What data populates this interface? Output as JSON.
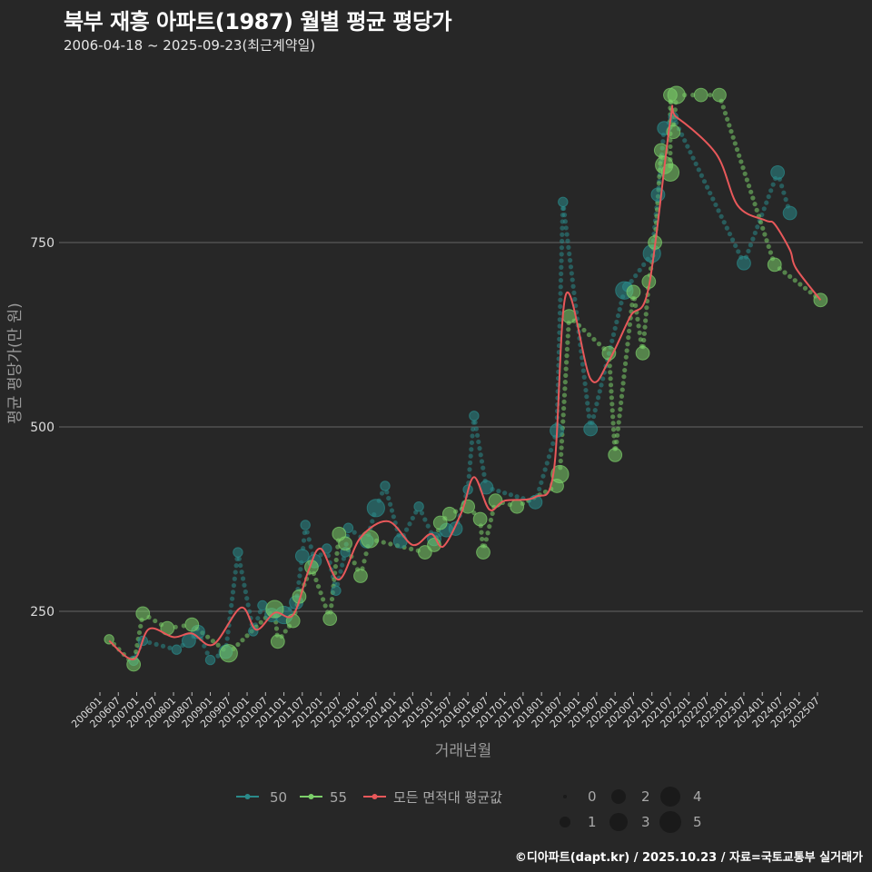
{
  "header": {
    "title": "북부 재흥 아파트(1987) 월별 평균 평당가",
    "subtitle": "2006-04-18 ~ 2025-09-23(최근계약일)"
  },
  "caption": "©디아파트(dapt.kr) / 2025.10.23 / 자료=국토교통부 실거래가",
  "colors": {
    "background": "#272727",
    "grid": "#5a5a5a",
    "series_50": "#2a8a8a",
    "series_55": "#7ccf6a",
    "average": "#e8585a"
  },
  "chart_data": {
    "type": "scatter+line",
    "title": "북부 재흥 아파트(1987) 월별 평균 평당가",
    "subtitle": "2006-04-18 ~ 2025-09-23(최근계약일)",
    "xlabel": "거래년월",
    "ylabel": "평균 평당가(만 원)",
    "ylim": [
      150,
      970
    ],
    "yticks": [
      250,
      500,
      750
    ],
    "grid": "horizontal",
    "x_tick_labels": [
      "200601",
      "200607",
      "200701",
      "200707",
      "200801",
      "200807",
      "200901",
      "200907",
      "201001",
      "201007",
      "201101",
      "201107",
      "201201",
      "201207",
      "201301",
      "201307",
      "201401",
      "201407",
      "201501",
      "201507",
      "201601",
      "201607",
      "201701",
      "201707",
      "201801",
      "201807",
      "201901",
      "201907",
      "202001",
      "202007",
      "202101",
      "202107",
      "202201",
      "202207",
      "202301",
      "202307",
      "202401",
      "202407",
      "202501",
      "202507"
    ],
    "legend": {
      "series": [
        "50",
        "55",
        "모든 면적대 평균값"
      ],
      "size_title": "",
      "size_values": [
        "0",
        "1",
        "2",
        "3",
        "4",
        "5"
      ],
      "position": "bottom"
    },
    "series": [
      {
        "name": "50",
        "color": "#2a8a8a",
        "points": [
          [
            "2006-12",
            183,
            1
          ],
          [
            "2007-03",
            210,
            1
          ],
          [
            "2008-02",
            198,
            1
          ],
          [
            "2008-06",
            210,
            2
          ],
          [
            "2008-09",
            222,
            2
          ],
          [
            "2009-01",
            184,
            1
          ],
          [
            "2009-06",
            195,
            2
          ],
          [
            "2009-10",
            330,
            1
          ],
          [
            "2010-03",
            223,
            1
          ],
          [
            "2010-06",
            258,
            1
          ],
          [
            "2010-09",
            245,
            2
          ],
          [
            "2011-01",
            245,
            3
          ],
          [
            "2011-05",
            262,
            2
          ],
          [
            "2011-07",
            325,
            2
          ],
          [
            "2011-08",
            367,
            1
          ],
          [
            "2011-11",
            318,
            2
          ],
          [
            "2012-03",
            335,
            1
          ],
          [
            "2012-06",
            278,
            1
          ],
          [
            "2012-09",
            330,
            1
          ],
          [
            "2012-10",
            363,
            1
          ],
          [
            "2013-04",
            345,
            2
          ],
          [
            "2013-07",
            390,
            3
          ],
          [
            "2013-10",
            420,
            1
          ],
          [
            "2014-03",
            345,
            2
          ],
          [
            "2014-09",
            392,
            1
          ],
          [
            "2015-02",
            348,
            2
          ],
          [
            "2015-06",
            360,
            2
          ],
          [
            "2015-09",
            362,
            2
          ],
          [
            "2016-01",
            415,
            1
          ],
          [
            "2016-03",
            515,
            1
          ],
          [
            "2016-07",
            418,
            2
          ],
          [
            "2017-11",
            398,
            2
          ],
          [
            "2018-06",
            495,
            2
          ],
          [
            "2018-08",
            805,
            1
          ],
          [
            "2019-05",
            497,
            2
          ],
          [
            "2020-04",
            685,
            3
          ],
          [
            "2020-05",
            690,
            1
          ],
          [
            "2021-01",
            735,
            3
          ],
          [
            "2021-03",
            815,
            2
          ],
          [
            "2021-05",
            905,
            2
          ],
          [
            "2021-08",
            920,
            1
          ],
          [
            "2023-07",
            722,
            2
          ],
          [
            "2024-06",
            845,
            2
          ],
          [
            "2024-10",
            790,
            2
          ]
        ]
      },
      {
        "name": "55",
        "color": "#7ccf6a",
        "points": [
          [
            "2006-04",
            212,
            1
          ],
          [
            "2006-12",
            178,
            2
          ],
          [
            "2007-03",
            247,
            2
          ],
          [
            "2007-11",
            227,
            2
          ],
          [
            "2008-07",
            232,
            2
          ],
          [
            "2009-07",
            193,
            3
          ],
          [
            "2010-10",
            253,
            3
          ],
          [
            "2010-11",
            209,
            2
          ],
          [
            "2011-04",
            237,
            2
          ],
          [
            "2011-06",
            270,
            2
          ],
          [
            "2011-10",
            310,
            2
          ],
          [
            "2012-04",
            240,
            2
          ],
          [
            "2012-07",
            355,
            2
          ],
          [
            "2012-09",
            342,
            2
          ],
          [
            "2013-02",
            298,
            2
          ],
          [
            "2013-05",
            348,
            3
          ],
          [
            "2014-11",
            330,
            2
          ],
          [
            "2015-02",
            340,
            2
          ],
          [
            "2015-04",
            370,
            2
          ],
          [
            "2015-07",
            382,
            2
          ],
          [
            "2016-01",
            392,
            2
          ],
          [
            "2016-05",
            375,
            2
          ],
          [
            "2016-06",
            330,
            2
          ],
          [
            "2016-10",
            400,
            2
          ],
          [
            "2017-05",
            392,
            2
          ],
          [
            "2018-06",
            420,
            2
          ],
          [
            "2018-07",
            436,
            3
          ],
          [
            "2018-10",
            650,
            2
          ],
          [
            "2019-11",
            600,
            2
          ],
          [
            "2020-01",
            462,
            2
          ],
          [
            "2020-07",
            683,
            2
          ],
          [
            "2020-10",
            600,
            2
          ],
          [
            "2020-12",
            697,
            2
          ],
          [
            "2021-02",
            750,
            2
          ],
          [
            "2021-04",
            875,
            2
          ],
          [
            "2021-05",
            855,
            3
          ],
          [
            "2021-07",
            845,
            3
          ],
          [
            "2021-08",
            900,
            2
          ],
          [
            "2021-07",
            950,
            2
          ],
          [
            "2021-09",
            950,
            3
          ],
          [
            "2022-05",
            950,
            2
          ],
          [
            "2022-11",
            950,
            2
          ],
          [
            "2024-05",
            720,
            2
          ],
          [
            "2025-08",
            672,
            2
          ]
        ]
      },
      {
        "name": "모든 면적대 평균값",
        "color": "#e8585a",
        "type": "line",
        "points": [
          [
            "2006-04",
            210
          ],
          [
            "2006-12",
            185
          ],
          [
            "2007-05",
            226
          ],
          [
            "2008-01",
            215
          ],
          [
            "2008-07",
            220
          ],
          [
            "2009-02",
            205
          ],
          [
            "2009-11",
            255
          ],
          [
            "2010-04",
            225
          ],
          [
            "2010-10",
            248
          ],
          [
            "2011-04",
            245
          ],
          [
            "2011-09",
            305
          ],
          [
            "2012-01",
            335
          ],
          [
            "2012-07",
            293
          ],
          [
            "2013-02",
            350
          ],
          [
            "2013-11",
            372
          ],
          [
            "2014-07",
            340
          ],
          [
            "2015-01",
            355
          ],
          [
            "2015-05",
            338
          ],
          [
            "2015-11",
            385
          ],
          [
            "2016-03",
            432
          ],
          [
            "2016-08",
            388
          ],
          [
            "2017-01",
            400
          ],
          [
            "2017-11",
            405
          ],
          [
            "2018-05",
            440
          ],
          [
            "2018-09",
            680
          ],
          [
            "2019-05",
            565
          ],
          [
            "2019-11",
            590
          ],
          [
            "2020-06",
            650
          ],
          [
            "2020-12",
            690
          ],
          [
            "2021-07",
            915
          ],
          [
            "2021-09",
            920
          ],
          [
            "2022-10",
            870
          ],
          [
            "2023-05",
            800
          ],
          [
            "2024-02",
            780
          ],
          [
            "2024-05",
            775
          ],
          [
            "2024-10",
            740
          ],
          [
            "2024-12",
            715
          ],
          [
            "2025-08",
            672
          ]
        ]
      }
    ]
  },
  "axes": {
    "x_title": "거래년월",
    "y_title": "평균 평당가(만 원)",
    "y_ticks": [
      "250",
      "500",
      "750"
    ]
  },
  "legend": {
    "items": [
      {
        "label": "50",
        "color": "#2a8a8a"
      },
      {
        "label": "55",
        "color": "#7ccf6a"
      },
      {
        "label": "모든 면적대 평균값",
        "color": "#e8585a"
      }
    ],
    "sizes": [
      "0",
      "1",
      "2",
      "3",
      "4",
      "5"
    ]
  }
}
